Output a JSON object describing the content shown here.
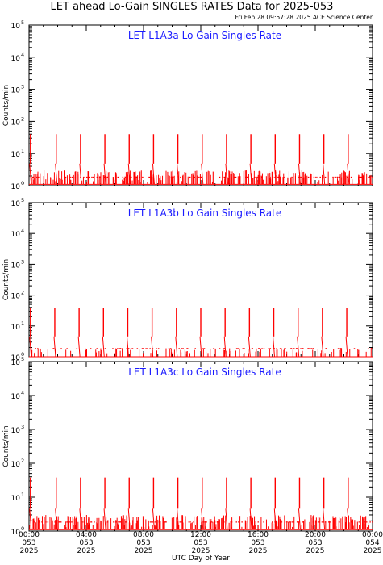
{
  "header": {
    "title": "LET ahead Lo-Gain SINGLES RATES Data for 2025-053",
    "timestamp": "Fri Feb 28 09:57:28 2025 ACE Science Center"
  },
  "colors": {
    "series": "#ff0000",
    "panel_title": "#1a1aff",
    "axes": "#000000"
  },
  "chart_data": [
    {
      "type": "line",
      "title": "LET L1A3a Lo Gain Singles Rate",
      "ylabel": "Counts/min",
      "yscale": "log",
      "ylim": [
        1,
        100000
      ],
      "yticks": [
        "10",
        "10",
        "10",
        "10",
        "10",
        "10"
      ],
      "ytick_exponents": [
        "0",
        "1",
        "2",
        "3",
        "4",
        "5"
      ],
      "xlim": [
        0,
        24
      ],
      "baseline": 1.1,
      "spikes": [
        {
          "x": 0.1,
          "y": 40
        },
        {
          "x": 1.9,
          "y": 40
        },
        {
          "x": 3.6,
          "y": 40
        },
        {
          "x": 5.3,
          "y": 40
        },
        {
          "x": 7.0,
          "y": 40
        },
        {
          "x": 8.7,
          "y": 40
        },
        {
          "x": 10.4,
          "y": 40
        },
        {
          "x": 12.1,
          "y": 40
        },
        {
          "x": 13.8,
          "y": 40
        },
        {
          "x": 15.5,
          "y": 40
        },
        {
          "x": 17.2,
          "y": 40
        },
        {
          "x": 18.9,
          "y": 40
        },
        {
          "x": 20.6,
          "y": 40
        },
        {
          "x": 22.3,
          "y": 40
        }
      ]
    },
    {
      "type": "line",
      "title": "LET L1A3b Lo Gain Singles Rate",
      "ylabel": "Counts/min",
      "yscale": "log",
      "ylim": [
        1,
        100000
      ],
      "yticks": [
        "10",
        "10",
        "10",
        "10",
        "10",
        "10"
      ],
      "ytick_exponents": [
        "0",
        "1",
        "2",
        "3",
        "4",
        "5"
      ],
      "xlim": [
        0,
        24
      ],
      "baseline": 1.0,
      "spikes": [
        {
          "x": 0.1,
          "y": 38
        },
        {
          "x": 1.8,
          "y": 38
        },
        {
          "x": 3.5,
          "y": 38
        },
        {
          "x": 5.2,
          "y": 38
        },
        {
          "x": 6.9,
          "y": 38
        },
        {
          "x": 8.6,
          "y": 38
        },
        {
          "x": 10.3,
          "y": 38
        },
        {
          "x": 12.0,
          "y": 38
        },
        {
          "x": 13.7,
          "y": 38
        },
        {
          "x": 15.4,
          "y": 38
        },
        {
          "x": 17.1,
          "y": 38
        },
        {
          "x": 18.8,
          "y": 38
        },
        {
          "x": 20.5,
          "y": 38
        },
        {
          "x": 22.2,
          "y": 38
        }
      ]
    },
    {
      "type": "line",
      "title": "LET L1A3c Lo Gain Singles Rate",
      "ylabel": "Counts/min",
      "yscale": "log",
      "ylim": [
        1,
        100000
      ],
      "yticks": [
        "10",
        "10",
        "10",
        "10",
        "10",
        "10"
      ],
      "ytick_exponents": [
        "0",
        "1",
        "2",
        "3",
        "4",
        "5"
      ],
      "xlim": [
        0,
        24
      ],
      "baseline": 1.1,
      "spikes": [
        {
          "x": 0.1,
          "y": 38
        },
        {
          "x": 1.9,
          "y": 38
        },
        {
          "x": 3.6,
          "y": 38
        },
        {
          "x": 5.3,
          "y": 38
        },
        {
          "x": 7.0,
          "y": 38
        },
        {
          "x": 8.7,
          "y": 38
        },
        {
          "x": 10.4,
          "y": 38
        },
        {
          "x": 12.1,
          "y": 38
        },
        {
          "x": 13.8,
          "y": 38
        },
        {
          "x": 15.5,
          "y": 38
        },
        {
          "x": 17.2,
          "y": 38
        },
        {
          "x": 18.9,
          "y": 38
        },
        {
          "x": 20.6,
          "y": 38
        },
        {
          "x": 22.3,
          "y": 38
        }
      ]
    }
  ],
  "xaxis": {
    "label": "UTC Day of Year",
    "ticks": [
      {
        "x": 0,
        "time": "00:00",
        "day": "053",
        "year": "2025"
      },
      {
        "x": 4,
        "time": "04:00",
        "day": "053",
        "year": "2025"
      },
      {
        "x": 8,
        "time": "08:00",
        "day": "053",
        "year": "2025"
      },
      {
        "x": 12,
        "time": "12:00",
        "day": "053",
        "year": "2025"
      },
      {
        "x": 16,
        "time": "16:00",
        "day": "053",
        "year": "2025"
      },
      {
        "x": 20,
        "time": "20:00",
        "day": "053",
        "year": "2025"
      },
      {
        "x": 24,
        "time": "00:00",
        "day": "054",
        "year": "2025"
      }
    ]
  }
}
